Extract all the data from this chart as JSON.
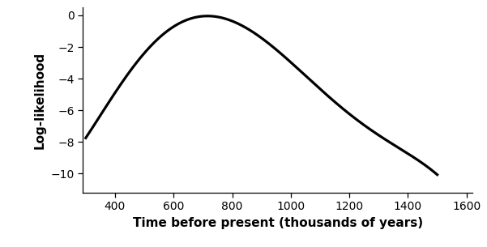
{
  "xlabel": "Time before present (thousands of years)",
  "ylabel": "Log-likelihood",
  "xlim": [
    290,
    1620
  ],
  "ylim": [
    -11.2,
    0.5
  ],
  "xticks": [
    400,
    600,
    800,
    1000,
    1200,
    1400,
    1600
  ],
  "yticks": [
    0,
    -2,
    -4,
    -6,
    -8,
    -10
  ],
  "ytick_labels": [
    "0",
    "−2",
    "−4",
    "−6",
    "−8",
    "−10"
  ],
  "curve_color": "#000000",
  "curve_linewidth": 2.3,
  "background_color": "#ffffff",
  "x_ctrl": [
    300,
    380,
    460,
    540,
    600,
    650,
    700,
    720,
    760,
    820,
    900,
    1000,
    1100,
    1200,
    1300,
    1400,
    1500
  ],
  "y_ctrl": [
    -7.7,
    -5.5,
    -3.4,
    -1.6,
    -0.65,
    -0.18,
    -0.02,
    -0.01,
    -0.12,
    -0.55,
    -1.6,
    -3.05,
    -4.55,
    -6.1,
    -7.55,
    -8.9,
    -10.0
  ],
  "figsize": [
    6.01,
    3.05
  ],
  "dpi": 100,
  "tick_fontsize": 10,
  "label_fontsize": 11
}
